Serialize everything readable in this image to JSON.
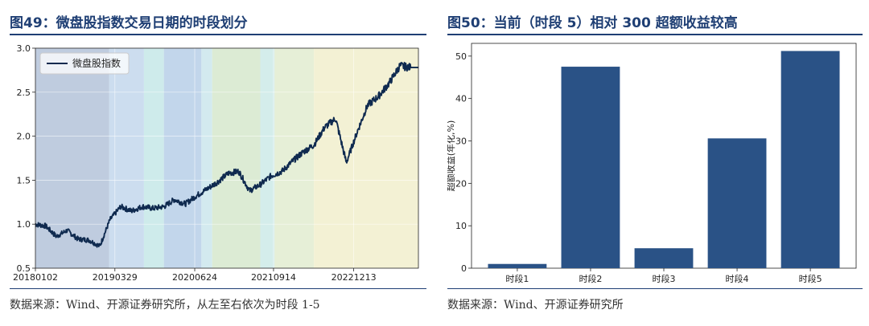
{
  "left_panel": {
    "title": "图49：微盘股指数交易日期的时段划分",
    "source": "数据来源：Wind、开源证券研究所，从左至右依次为时段 1-5"
  },
  "right_panel": {
    "title": "图50：当前（时段 5）相对 300 超额收益较高",
    "source": "数据来源：Wind、开源证券研究所"
  },
  "chart_data": [
    {
      "type": "line",
      "title": "",
      "xlabel": "",
      "ylabel": "",
      "ylim": [
        0.5,
        3.0
      ],
      "yticks": [
        "0.5",
        "1.0",
        "1.5",
        "2.0",
        "2.5",
        "3.0"
      ],
      "xticks": [
        "20180102",
        "20190329",
        "20200624",
        "20210914",
        "20221213"
      ],
      "legend": {
        "placement": "top-left",
        "entries": [
          "微盘股指数"
        ]
      },
      "grid": true,
      "colors": {
        "line": "#0f2a4f",
        "period_bands": [
          "#b4c3d9",
          "#c3d7ec",
          "#c6e8e8",
          "#b7cfe8",
          "#cbe6ec",
          "#d6e8cc",
          "#cdeae8",
          "#e2ecd0",
          "#f1efcd"
        ]
      },
      "series": [
        {
          "name": "微盘股指数",
          "x": [
            "20180102",
            "20180301",
            "20180501",
            "20180701",
            "20180901",
            "20181101",
            "20190102",
            "20190301",
            "20190501",
            "20190701",
            "20190901",
            "20191101",
            "20200102",
            "20200301",
            "20200501",
            "20200701",
            "20200901",
            "20201101",
            "20210102",
            "20210301",
            "20210501",
            "20210701",
            "20210901",
            "20211101",
            "20220102",
            "20220301",
            "20220501",
            "20220701",
            "20220901",
            "20221101",
            "20230102",
            "20230301",
            "20230501",
            "20230701",
            "20230901",
            "20231101"
          ],
          "values": [
            1.0,
            0.98,
            0.86,
            0.93,
            0.83,
            0.82,
            0.75,
            1.05,
            1.2,
            1.15,
            1.2,
            1.18,
            1.2,
            1.28,
            1.23,
            1.32,
            1.4,
            1.48,
            1.58,
            1.6,
            1.38,
            1.45,
            1.55,
            1.6,
            1.72,
            1.82,
            1.9,
            2.1,
            2.2,
            1.7,
            2.05,
            2.35,
            2.45,
            2.6,
            2.8,
            2.78
          ]
        }
      ]
    },
    {
      "type": "bar",
      "title": "",
      "xlabel": "",
      "ylabel": "超额收益(年化,%)",
      "categories": [
        "时段1",
        "时段2",
        "时段3",
        "时段4",
        "时段5"
      ],
      "values": [
        1.0,
        47.5,
        4.7,
        30.6,
        51.2
      ],
      "ylim": [
        0,
        53
      ],
      "yticks": [
        "0",
        "10",
        "20",
        "30",
        "40",
        "50"
      ],
      "grid": false,
      "colors": {
        "bar": "#2a5286"
      }
    }
  ]
}
